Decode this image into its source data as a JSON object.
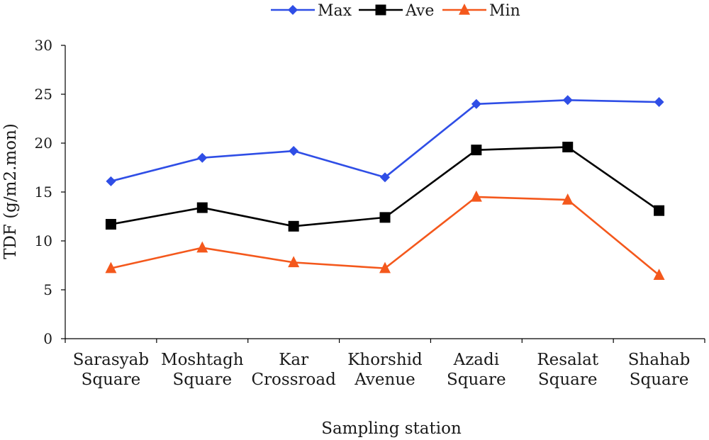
{
  "chart_data": {
    "type": "line",
    "title": "",
    "xlabel": "Sampling station",
    "ylabel": "TDF (g/m2.mon)",
    "ylim": [
      0,
      30
    ],
    "yticks": [
      "0",
      "5",
      "10",
      "15",
      "20",
      "25",
      "30"
    ],
    "grid": false,
    "legend_position": "top",
    "categories": [
      [
        "Sarasyab",
        "Square"
      ],
      [
        "Moshtagh",
        "Square"
      ],
      [
        "Kar",
        "Crossroad"
      ],
      [
        "Khorshid",
        "Avenue"
      ],
      [
        "Azadi",
        "Square"
      ],
      [
        "Resalat",
        "Square"
      ],
      [
        "Shahab",
        "Square"
      ]
    ],
    "series": [
      {
        "name": "Max",
        "color": "#2f4ee6",
        "marker": "diamond",
        "values": [
          16.1,
          18.5,
          19.2,
          16.5,
          24.0,
          24.4,
          24.2
        ]
      },
      {
        "name": "Ave",
        "color": "#000000",
        "marker": "square",
        "values": [
          11.7,
          13.4,
          11.5,
          12.4,
          19.3,
          19.6,
          13.1
        ]
      },
      {
        "name": "Min",
        "color": "#f4581c",
        "marker": "triangle",
        "values": [
          7.2,
          9.3,
          7.8,
          7.2,
          14.5,
          14.2,
          6.5
        ]
      }
    ]
  }
}
